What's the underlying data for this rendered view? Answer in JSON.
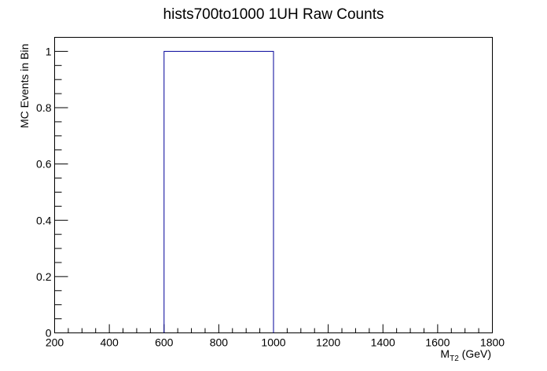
{
  "chart_data": {
    "type": "bar",
    "histogram": true,
    "title": "hists700to1000 1UH Raw Counts",
    "xlabel": "M",
    "xlabel_sub": "T2",
    "xlabel_unit": " (GeV)",
    "ylabel": "MC Events in Bin",
    "xlim": [
      200,
      1800
    ],
    "ylim": [
      0,
      1.05
    ],
    "x_ticks": [
      200,
      400,
      600,
      800,
      1000,
      1200,
      1400,
      1600,
      1800
    ],
    "y_ticks": [
      0,
      0.2,
      0.4,
      0.6,
      0.8,
      1
    ],
    "y_tick_labels": [
      "0",
      "0.2",
      "0.4",
      "0.6",
      "0.8",
      "1"
    ],
    "bins": [
      {
        "low": 600,
        "high": 1000,
        "value": 1
      }
    ],
    "line_color": "#000099",
    "grid": false,
    "legend": "none"
  }
}
